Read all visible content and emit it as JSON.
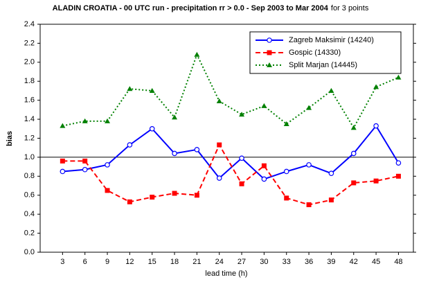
{
  "chart_data": {
    "type": "line",
    "title": "ALADIN CROATIA - 00 UTC run - precipitation rr > 0.0 - Sep 2003 to Mar 2004",
    "subtitle": "for 3 points",
    "x_label": "lead time (h)",
    "y_label": "bias",
    "x": [
      3,
      6,
      9,
      12,
      15,
      18,
      21,
      24,
      27,
      30,
      33,
      36,
      39,
      42,
      45,
      48
    ],
    "xlim": [
      0,
      50
    ],
    "xticks": [
      3,
      6,
      9,
      12,
      15,
      18,
      21,
      24,
      27,
      30,
      33,
      36,
      39,
      42,
      45,
      48
    ],
    "ylim": [
      0,
      2.4
    ],
    "yticks": [
      {
        "value": 0,
        "label": "0.0"
      },
      0.2,
      0.4,
      0.6,
      0.8,
      {
        "value": 1,
        "label": "1.0"
      },
      1.2,
      1.4,
      1.6,
      1.8,
      {
        "value": 2,
        "label": "2.0"
      },
      2.2,
      2.4
    ],
    "reference_line": 1,
    "grid": false,
    "legend": "top-right",
    "series": [
      {
        "name": "Zagreb Maksimir (14240)",
        "color": "#0000ff",
        "marker": "circle",
        "dash": "solid",
        "values": [
          0.85,
          0.87,
          0.92,
          1.13,
          1.3,
          1.04,
          1.08,
          0.78,
          0.99,
          0.77,
          0.85,
          0.92,
          0.83,
          1.04,
          1.33,
          0.94
        ]
      },
      {
        "name": "Gospic (14330)",
        "color": "#ff0000",
        "marker": "square",
        "dash": "dashed",
        "values": [
          0.96,
          0.96,
          0.65,
          0.53,
          0.58,
          0.62,
          0.6,
          1.13,
          0.72,
          0.91,
          0.57,
          0.5,
          0.55,
          0.73,
          0.75,
          0.8
        ]
      },
      {
        "name": "Split Marjan (14445)",
        "color": "#008000",
        "marker": "triangle",
        "dash": "dotted",
        "values": [
          1.33,
          1.38,
          1.38,
          1.72,
          1.7,
          1.42,
          2.08,
          1.59,
          1.45,
          1.54,
          1.35,
          1.52,
          1.7,
          1.31,
          1.74,
          1.84
        ]
      }
    ]
  }
}
